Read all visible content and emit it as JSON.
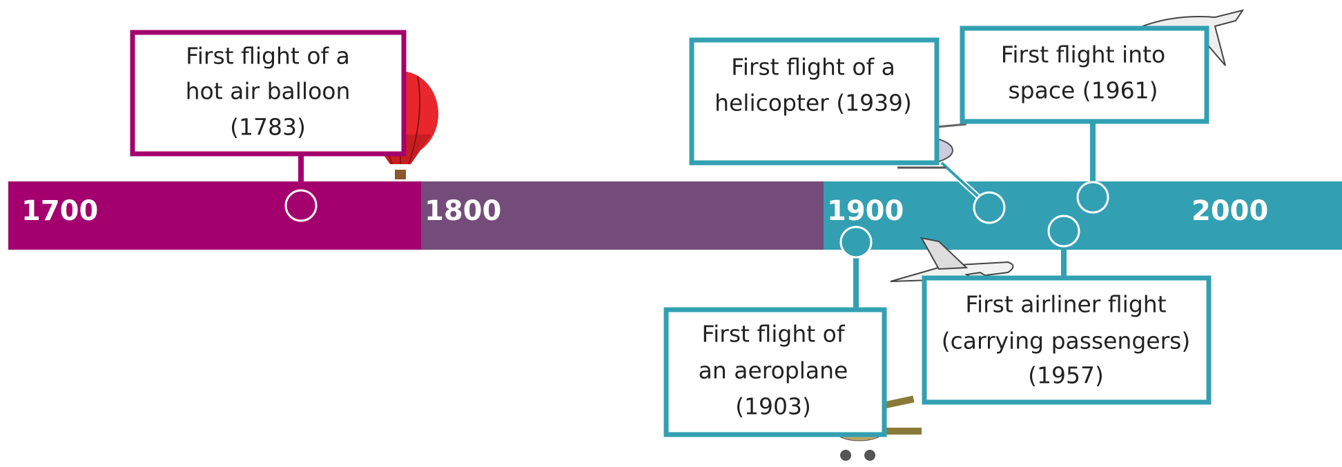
{
  "timeline": {
    "centuries": [
      "1700",
      "1800",
      "1900",
      "2000"
    ],
    "events": [
      {
        "lines": [
          "First flight of a",
          "hot air balloon",
          "(1783)"
        ]
      },
      {
        "lines": [
          "First flight of a",
          "helicopter (1939)"
        ]
      },
      {
        "lines": [
          "First flight into",
          "space (1961)"
        ]
      },
      {
        "lines": [
          "First flight of",
          "an aeroplane",
          "(1903)"
        ]
      },
      {
        "lines": [
          "First airliner flight",
          "(carrying passengers)",
          "(1957)"
        ]
      }
    ]
  }
}
